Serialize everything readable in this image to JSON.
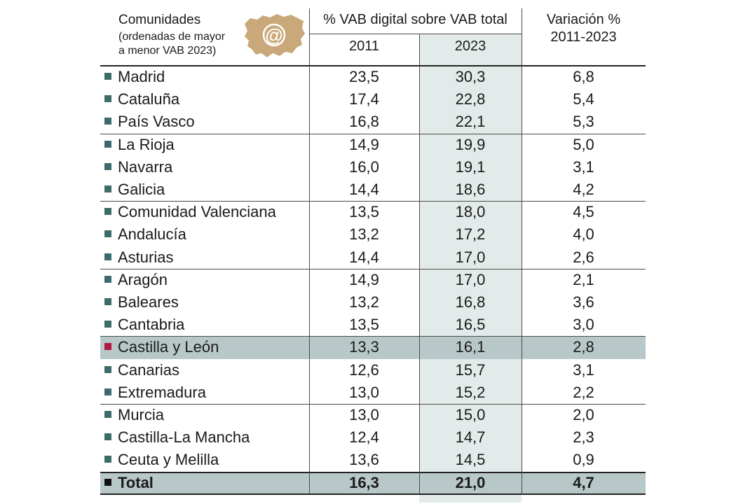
{
  "header": {
    "communities_label": "Comunidades",
    "communities_note_line1": "(ordenadas de mayor",
    "communities_note_line2": "a menor VAB 2023)",
    "group_label": "% VAB digital sobre VAB total",
    "year_a": "2011",
    "year_b": "2023",
    "variation_label_line1": "Variación %",
    "variation_label_line2": "2011-2023",
    "logo_symbol": "@"
  },
  "colors": {
    "marker_default": "#3d6b6a",
    "marker_highlight": "#b01844",
    "marker_total": "#111111",
    "shade_column": "#e3ebea",
    "highlight_row": "#b8c8c9",
    "logo_map": "#c9a97a"
  },
  "chart_data": {
    "type": "table",
    "columns": [
      "Comunidades",
      "2011",
      "2023",
      "Variación % 2011-2023"
    ],
    "rows": [
      {
        "name": "Madrid",
        "v2011": "23,5",
        "v2023": "30,3",
        "var": "6,8"
      },
      {
        "name": "Cataluña",
        "v2011": "17,4",
        "v2023": "22,8",
        "var": "5,4"
      },
      {
        "name": "País Vasco",
        "v2011": "16,8",
        "v2023": "22,1",
        "var": "5,3"
      },
      {
        "name": "La Rioja",
        "v2011": "14,9",
        "v2023": "19,9",
        "var": "5,0"
      },
      {
        "name": "Navarra",
        "v2011": "16,0",
        "v2023": "19,1",
        "var": "3,1"
      },
      {
        "name": "Galicia",
        "v2011": "14,4",
        "v2023": "18,6",
        "var": "4,2"
      },
      {
        "name": "Comunidad Valenciana",
        "v2011": "13,5",
        "v2023": "18,0",
        "var": "4,5"
      },
      {
        "name": "Andalucía",
        "v2011": "13,2",
        "v2023": "17,2",
        "var": "4,0"
      },
      {
        "name": "Asturias",
        "v2011": "14,4",
        "v2023": "17,0",
        "var": "2,6"
      },
      {
        "name": "Aragón",
        "v2011": "14,9",
        "v2023": "17,0",
        "var": "2,1"
      },
      {
        "name": "Baleares",
        "v2011": "13,2",
        "v2023": "16,8",
        "var": "3,6"
      },
      {
        "name": "Cantabria",
        "v2011": "13,5",
        "v2023": "16,5",
        "var": "3,0"
      },
      {
        "name": "Castilla y León",
        "v2011": "13,3",
        "v2023": "16,1",
        "var": "2,8",
        "highlight": true
      },
      {
        "name": "Canarias",
        "v2011": "12,6",
        "v2023": "15,7",
        "var": "3,1"
      },
      {
        "name": "Extremadura",
        "v2011": "13,0",
        "v2023": "15,2",
        "var": "2,2"
      },
      {
        "name": "Murcia",
        "v2011": "13,0",
        "v2023": "15,0",
        "var": "2,0"
      },
      {
        "name": "Castilla-La Mancha",
        "v2011": "12,4",
        "v2023": "14,7",
        "var": "2,3"
      },
      {
        "name": "Ceuta y Melilla",
        "v2011": "13,6",
        "v2023": "14,5",
        "var": "0,9"
      }
    ],
    "total": {
      "name": "Total",
      "v2011": "16,3",
      "v2023": "21,0",
      "var": "4,7"
    }
  }
}
